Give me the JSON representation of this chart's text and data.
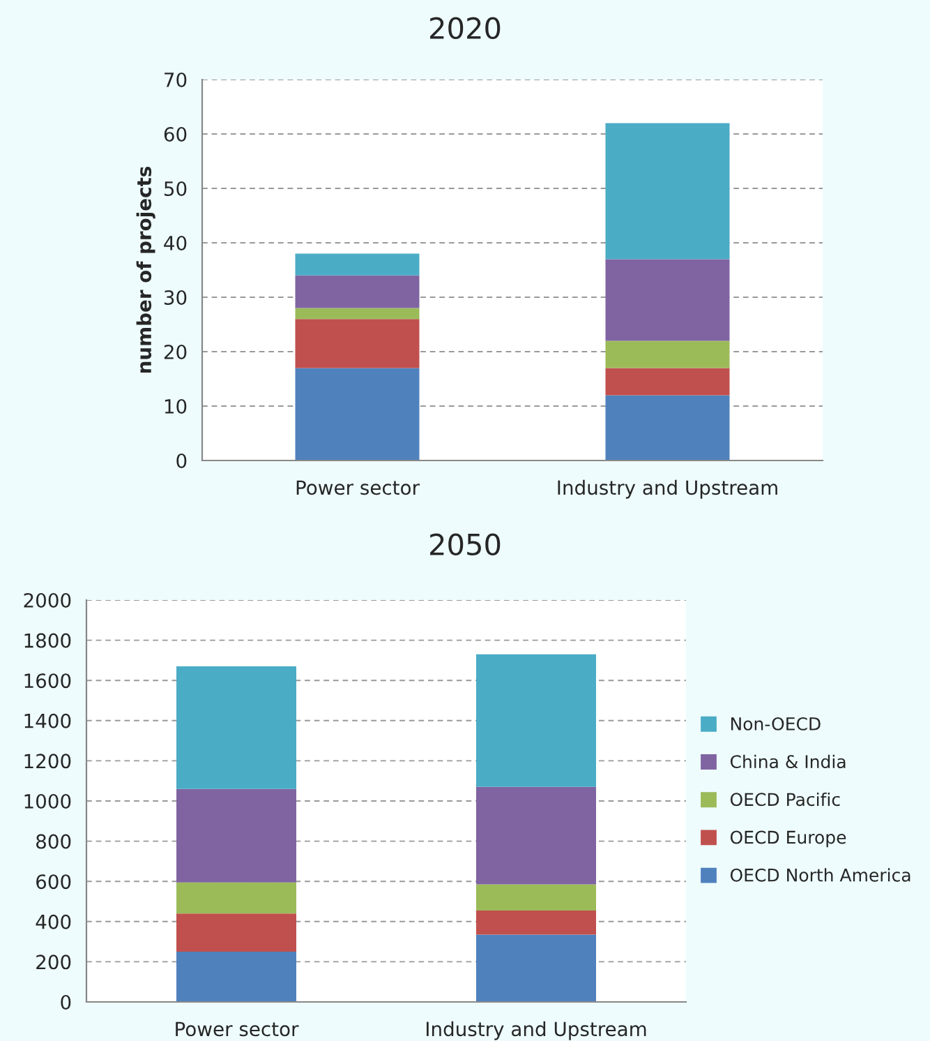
{
  "chart_data": [
    {
      "type": "bar",
      "title": "2020",
      "ylabel": "number of projects",
      "categories": [
        "Power sector",
        "Industry and Upstream"
      ],
      "stacked": true,
      "ylim": [
        0,
        70
      ],
      "yticks": [
        0,
        10,
        20,
        30,
        40,
        50,
        60,
        70
      ],
      "grid": "y",
      "legend": false,
      "series": [
        {
          "color": "#4f81bd",
          "values": [
            17,
            12
          ]
        },
        {
          "color": "#c0504d",
          "values": [
            9,
            5
          ]
        },
        {
          "color": "#9bbb59",
          "values": [
            2,
            5
          ]
        },
        {
          "color": "#8064a2",
          "values": [
            6,
            15
          ]
        },
        {
          "color": "#4bacc6",
          "values": [
            4,
            25
          ]
        }
      ]
    },
    {
      "type": "bar",
      "title": "2050",
      "categories": [
        "Power sector",
        "Industry and Upstream"
      ],
      "stacked": true,
      "ylim": [
        0,
        2000
      ],
      "yticks": [
        0,
        200,
        400,
        600,
        800,
        1000,
        1200,
        1400,
        1600,
        1800,
        2000
      ],
      "grid": "y",
      "legend": "right",
      "series": [
        {
          "name": "OECD North America",
          "color": "#4f81bd",
          "values": [
            250,
            335
          ]
        },
        {
          "name": "OECD Europe",
          "color": "#c0504d",
          "values": [
            190,
            120
          ]
        },
        {
          "name": "OECD Pacific",
          "color": "#9bbb59",
          "values": [
            155,
            130
          ]
        },
        {
          "name": "China & India",
          "color": "#8064a2",
          "values": [
            465,
            485
          ]
        },
        {
          "name": "Non-OECD",
          "color": "#4bacc6",
          "values": [
            610,
            660
          ]
        }
      ]
    }
  ]
}
